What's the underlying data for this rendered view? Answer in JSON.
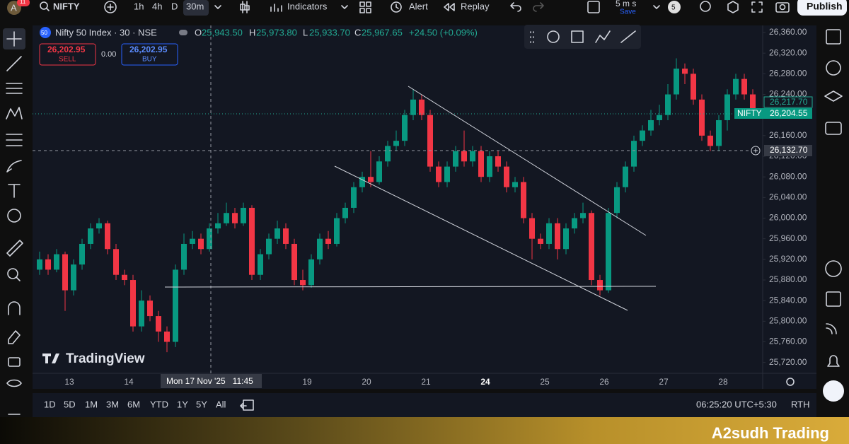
{
  "top_bar": {
    "avatar": "A",
    "badge": "11",
    "symbol": "NIFTY",
    "intervals": [
      "1h",
      "4h",
      "D",
      "30m"
    ],
    "indicators": "Indicators",
    "alert": "Alert",
    "replay": "Replay",
    "speed": "5 m s",
    "save": "Save",
    "count": "5",
    "publish": "Publish"
  },
  "legend": {
    "badge": "50",
    "title": "Nifty 50 Index · 30 · NSE",
    "o_label": "O",
    "o": "25,943.50",
    "h_label": "H",
    "h": "25,973.80",
    "l_label": "L",
    "l": "25,933.70",
    "c_label": "C",
    "c": "25,967.65",
    "change": "+24.50 (+0.09%)",
    "sell_price": "26,202.95",
    "sell": "SELL",
    "spread": "0.00",
    "buy_price": "26,202.95",
    "buy": "BUY"
  },
  "watermark": "TradingView",
  "chart_data": {
    "type": "candlestick",
    "open": [
      25900,
      25920,
      25900,
      25930,
      25860,
      25910,
      25950,
      25980,
      25990,
      25940,
      25890,
      25880,
      25790,
      25840,
      25810,
      25780,
      25760,
      25900,
      25950,
      25960,
      25940,
      25980,
      25990,
      26010,
      25990,
      26020,
      25890,
      25930,
      25960,
      25980,
      25950,
      25880,
      25870,
      25920,
      25960,
      25950,
      26000,
      26020,
      26060,
      26080,
      26070,
      26110,
      26140,
      26150,
      26200,
      26230,
      26200,
      26100,
      26070,
      26100,
      26130,
      26110,
      26130,
      26080,
      26120,
      26100,
      26060,
      26070,
      26000,
      25960,
      25950,
      25990,
      25940,
      25980,
      26000,
      26010,
      25880,
      25860,
      26010,
      26060,
      26100,
      26150,
      26170,
      26190,
      26200,
      26240,
      26290,
      26280,
      26230,
      26160,
      26140,
      26190,
      26240,
      26270,
      26240
    ],
    "high": [
      25935,
      25930,
      25940,
      25935,
      25920,
      25960,
      25990,
      26000,
      25995,
      25950,
      25900,
      25890,
      25860,
      25850,
      25820,
      25790,
      25910,
      25970,
      25975,
      25970,
      25990,
      26010,
      26030,
      26020,
      26030,
      26025,
      25940,
      25970,
      25995,
      25990,
      25960,
      25900,
      25930,
      25970,
      25975,
      26010,
      26030,
      26070,
      26090,
      26130,
      26120,
      26150,
      26170,
      26210,
      26250,
      26240,
      26210,
      26110,
      26110,
      26140,
      26170,
      26140,
      26140,
      26130,
      26130,
      26110,
      26080,
      26080,
      26010,
      25970,
      26000,
      26000,
      25990,
      26010,
      26030,
      26015,
      25890,
      26020,
      26070,
      26110,
      26160,
      26180,
      26210,
      26220,
      26260,
      26310,
      26300,
      26290,
      26240,
      26170,
      26200,
      26250,
      26280,
      26280,
      26250
    ],
    "low": [
      25890,
      25890,
      25895,
      25820,
      25850,
      25900,
      25940,
      25970,
      25930,
      25880,
      25870,
      25780,
      25780,
      25800,
      25760,
      25740,
      25750,
      25890,
      25940,
      25930,
      25935,
      25970,
      25985,
      25980,
      25985,
      25880,
      25880,
      25920,
      25950,
      25940,
      25870,
      25860,
      25865,
      25910,
      25940,
      25945,
      25990,
      26010,
      26050,
      26060,
      26065,
      26100,
      26130,
      26140,
      26190,
      26190,
      26090,
      26060,
      26060,
      26090,
      26100,
      26100,
      26070,
      26070,
      26090,
      26050,
      26050,
      25990,
      25920,
      25940,
      25940,
      25920,
      25930,
      25970,
      25990,
      25870,
      25850,
      25855,
      26000,
      26050,
      26090,
      26140,
      26160,
      26180,
      26190,
      26230,
      26260,
      26220,
      26150,
      26130,
      26130,
      26170,
      26230,
      26230,
      26200
    ],
    "close": [
      25920,
      25900,
      25930,
      25860,
      25910,
      25950,
      25980,
      25990,
      25940,
      25890,
      25880,
      25790,
      25840,
      25810,
      25780,
      25760,
      25900,
      25950,
      25960,
      25940,
      25980,
      25990,
      26010,
      25990,
      26020,
      25890,
      25930,
      25960,
      25980,
      25950,
      25880,
      25870,
      25920,
      25960,
      25950,
      26000,
      26020,
      26060,
      26080,
      26070,
      26110,
      26140,
      26150,
      26200,
      26230,
      26200,
      26100,
      26070,
      26100,
      26130,
      26110,
      26130,
      26080,
      26120,
      26100,
      26060,
      26070,
      26000,
      25960,
      25950,
      25990,
      25940,
      25980,
      26000,
      26010,
      25880,
      25860,
      26010,
      26060,
      26100,
      26150,
      26170,
      26190,
      26200,
      26240,
      26290,
      26280,
      26230,
      26160,
      26140,
      26190,
      26240,
      26270,
      26240,
      26205
    ],
    "up_color": "#089981",
    "down_color": "#f23645",
    "ylim": [
      25699,
      26371
    ],
    "yticks": [
      {
        "value": 25720,
        "label": "25,720.00"
      },
      {
        "value": 25760,
        "label": "25,760.00"
      },
      {
        "value": 25800,
        "label": "25,800.00"
      },
      {
        "value": 25840,
        "label": "25,840.00"
      },
      {
        "value": 25880,
        "label": "25,880.00"
      },
      {
        "value": 25920,
        "label": "25,920.00"
      },
      {
        "value": 25960,
        "label": "25,960.00"
      },
      {
        "value": 26000,
        "label": "26,000.00"
      },
      {
        "value": 26040,
        "label": "26,040.00"
      },
      {
        "value": 26080,
        "label": "26,080.00"
      },
      {
        "value": 26120,
        "label": "26,120.00"
      },
      {
        "value": 26160,
        "label": "26,160.00"
      },
      {
        "value": 26200,
        "label": "26,200.00"
      },
      {
        "value": 26240,
        "label": "26,240.00"
      },
      {
        "value": 26280,
        "label": "26,280.00"
      },
      {
        "value": 26320,
        "label": "26,320.00"
      },
      {
        "value": 26360,
        "label": "26,360.00"
      }
    ],
    "x_labels": [
      "13",
      "14",
      "19",
      "20",
      "21",
      "24",
      "25",
      "26",
      "27",
      "28"
    ],
    "crosshair_label": "Mon 17 Nov '25   11:45",
    "price_labels": {
      "bid": "26,217.70",
      "symbol": "NIFTY",
      "last": "26,204.55",
      "cursor": "26,132.70"
    }
  },
  "bottom_bar": {
    "ranges": [
      "1D",
      "5D",
      "1M",
      "3M",
      "6M",
      "YTD",
      "1Y",
      "5Y",
      "All"
    ],
    "time": "06:25:20 UTC+5:30",
    "session": "RTH"
  },
  "banner": "A2sudh Trading"
}
